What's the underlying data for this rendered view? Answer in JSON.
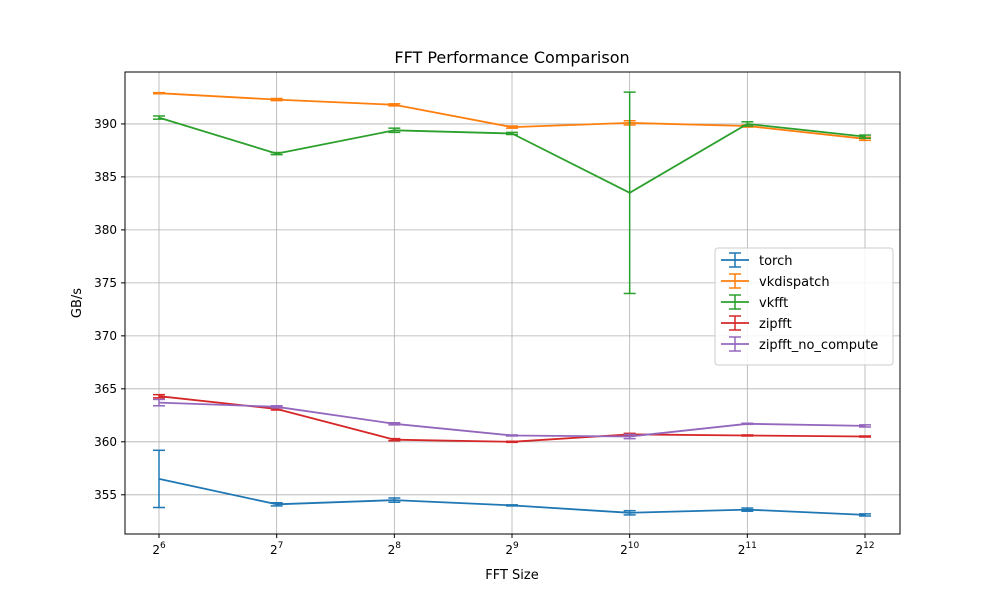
{
  "chart_data": {
    "type": "line",
    "title": "FFT Performance Comparison",
    "xlabel": "FFT Size",
    "ylabel": "GB/s",
    "x_scale": "log2",
    "x": [
      64,
      128,
      256,
      512,
      1024,
      2048,
      4096
    ],
    "x_tick_labels": [
      {
        "base": "2",
        "exp": "6"
      },
      {
        "base": "2",
        "exp": "7"
      },
      {
        "base": "2",
        "exp": "8"
      },
      {
        "base": "2",
        "exp": "9"
      },
      {
        "base": "2",
        "exp": "10"
      },
      {
        "base": "2",
        "exp": "11"
      },
      {
        "base": "2",
        "exp": "12"
      }
    ],
    "ylim": [
      351.3,
      394.9
    ],
    "y_ticks": [
      355,
      360,
      365,
      370,
      375,
      380,
      385,
      390
    ],
    "grid": true,
    "legend_position": "center-right",
    "series": [
      {
        "name": "torch",
        "color": "#1f77b4",
        "values": [
          356.5,
          354.1,
          354.5,
          354.0,
          353.3,
          353.6,
          353.1
        ],
        "errors": [
          2.7,
          0.15,
          0.2,
          0.05,
          0.2,
          0.15,
          0.1
        ]
      },
      {
        "name": "vkdispatch",
        "color": "#ff7f0e",
        "values": [
          392.9,
          392.3,
          391.8,
          389.7,
          390.1,
          389.8,
          388.6
        ],
        "errors": [
          0.05,
          0.1,
          0.1,
          0.1,
          0.2,
          0.1,
          0.15
        ]
      },
      {
        "name": "vkfft",
        "color": "#2ca02c",
        "values": [
          390.6,
          387.2,
          389.4,
          389.1,
          383.5,
          390.0,
          388.8
        ],
        "errors": [
          0.15,
          0.1,
          0.2,
          0.1,
          9.5,
          0.2,
          0.15
        ]
      },
      {
        "name": "zipfft",
        "color": "#d62728",
        "values": [
          364.3,
          363.1,
          360.2,
          360.0,
          360.7,
          360.6,
          360.5
        ],
        "errors": [
          0.15,
          0.1,
          0.1,
          0.05,
          0.1,
          0.05,
          0.05
        ]
      },
      {
        "name": "zipfft_no_compute",
        "color": "#9467bd",
        "values": [
          363.7,
          363.3,
          361.7,
          360.6,
          360.5,
          361.7,
          361.5
        ],
        "errors": [
          0.3,
          0.1,
          0.1,
          0.05,
          0.2,
          0.05,
          0.1
        ]
      }
    ]
  }
}
